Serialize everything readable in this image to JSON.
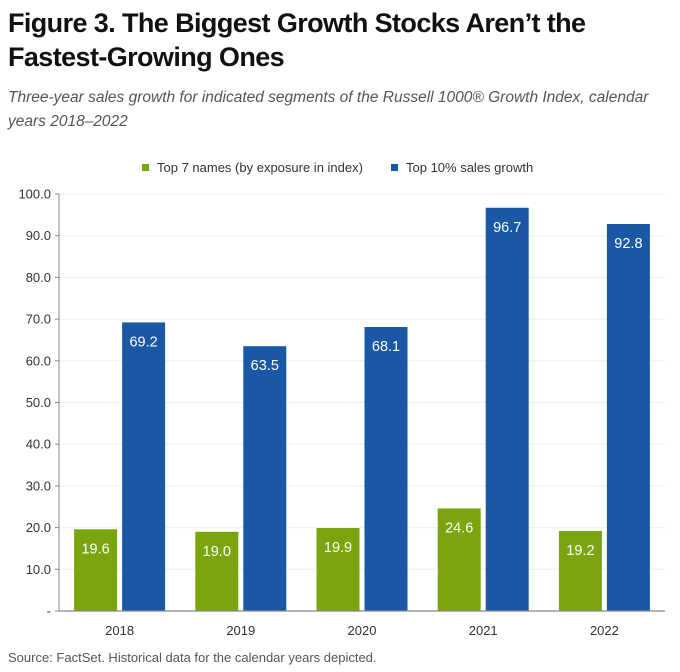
{
  "figure": {
    "title": "Figure 3. The Biggest Growth Stocks Aren’t the Fastest-Growing Ones",
    "subtitle": "Three-year sales growth for indicated segments of the Russell 1000® Growth Index, calendar years 2018–2022",
    "source": "Source: FactSet. Historical data for the calendar years depicted."
  },
  "chart_data": {
    "type": "bar",
    "title": "Figure 3. The Biggest Growth Stocks Aren’t the Fastest-Growing Ones",
    "subtitle": "Three-year sales growth for indicated segments of the Russell 1000® Growth Index, calendar years 2018–2022",
    "xlabel": "",
    "ylabel": "",
    "categories": [
      "2018",
      "2019",
      "2020",
      "2021",
      "2022"
    ],
    "series": [
      {
        "name": "Top 7 names (by exposure in index)",
        "color": "#7aa50f",
        "values": [
          19.6,
          19.0,
          19.9,
          24.6,
          19.2
        ]
      },
      {
        "name": "Top 10% sales growth",
        "color": "#1a57a4",
        "values": [
          69.2,
          63.5,
          68.1,
          96.7,
          92.8
        ]
      }
    ],
    "ylim": [
      0,
      100
    ],
    "yticks": [
      0,
      10,
      20,
      30,
      40,
      50,
      60,
      70,
      80,
      90,
      100
    ],
    "ytick_labels": [
      "-",
      "10.0",
      "20.0",
      "30.0",
      "40.0",
      "50.0",
      "60.0",
      "70.0",
      "80.0",
      "90.0",
      "100.0"
    ],
    "grid": true,
    "legend_position": "top-center",
    "data_labels": true
  }
}
